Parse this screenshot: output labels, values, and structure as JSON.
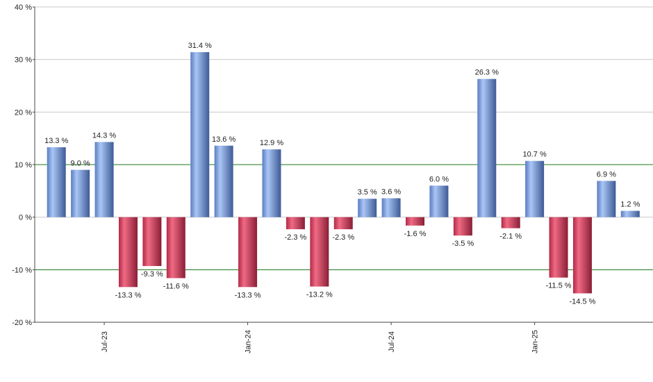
{
  "chart_data": {
    "type": "bar",
    "categories": [
      null,
      null,
      "Jul-23",
      null,
      null,
      null,
      null,
      null,
      "Jan-24",
      null,
      null,
      null,
      null,
      null,
      "Jul-24",
      null,
      null,
      null,
      null,
      null,
      "Jan-25",
      null,
      null,
      null,
      null
    ],
    "values": [
      13.3,
      9.0,
      14.3,
      -13.3,
      -9.3,
      -11.6,
      31.4,
      13.6,
      -13.3,
      12.9,
      -2.3,
      -13.2,
      -2.3,
      3.5,
      3.6,
      -1.6,
      6.0,
      -3.5,
      26.3,
      -2.1,
      10.7,
      -11.5,
      -14.5,
      6.9,
      1.2
    ],
    "value_labels": [
      "13.3 %",
      "9.0 %",
      "14.3 %",
      "-13.3 %",
      "-9.3 %",
      "-11.6 %",
      "31.4 %",
      "13.6 %",
      "-13.3 %",
      "12.9 %",
      "-2.3 %",
      "-13.2 %",
      "-2.3 %",
      "3.5 %",
      "3.6 %",
      "-1.6 %",
      "6.0 %",
      "-3.5 %",
      "26.3 %",
      "-2.1 %",
      "10.7 %",
      "-11.5 %",
      "-14.5 %",
      "6.9 %",
      "1.2 %"
    ],
    "positive_color": "#6f95dc",
    "negative_color": "#d8405e",
    "ylim": [
      -20,
      40
    ],
    "yticks": [
      {
        "value": -20,
        "label": "-20 %"
      },
      {
        "value": -10,
        "label": "-10 %"
      },
      {
        "value": 0,
        "label": "0 %"
      },
      {
        "value": 10,
        "label": "10 %"
      },
      {
        "value": 20,
        "label": "20 %"
      },
      {
        "value": 30,
        "label": "30 %"
      },
      {
        "value": 40,
        "label": "40 %"
      }
    ],
    "grid": true,
    "grid_color": "#c8c8c8",
    "reference_lines": [
      {
        "value": 10,
        "color": "#1a7a1a"
      },
      {
        "value": -10,
        "color": "#1a7a1a"
      }
    ]
  }
}
